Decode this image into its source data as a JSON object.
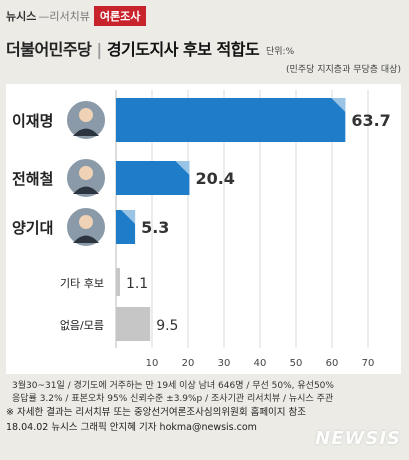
{
  "header": {
    "brand_name": "뉴시스",
    "brand_sub": "리서치뷰",
    "tag": "여론조사",
    "title_part1": "더불어민주당",
    "title_part2": "경기도지사 후보 적합도",
    "unit": "단위:%",
    "subtitle": "(민주당 지지층과 무당층 대상)"
  },
  "chart_data": {
    "type": "bar",
    "orientation": "horizontal",
    "categories": [
      "이재명",
      "전해철",
      "양기대",
      "기타 후보",
      "없음/모름"
    ],
    "values": [
      63.7,
      20.4,
      5.3,
      1.1,
      9.5
    ],
    "value_labels": [
      "63.7",
      "20.4",
      "5.3",
      "1.1",
      "9.5"
    ],
    "xlim": [
      0,
      75
    ],
    "xticks": [
      "10",
      "20",
      "30",
      "40",
      "50",
      "60",
      "70"
    ],
    "tick_values": [
      10,
      20,
      30,
      40,
      50,
      60,
      70
    ],
    "grid": true,
    "colors": {
      "candidate": "#1f7cc8",
      "other": "#c6c6c6",
      "panel": "#ffffff",
      "grid": "#d9d9d9",
      "photo_bg": "#8a9aa8"
    },
    "photo_icons": [
      "candidate-photo",
      "candidate-photo",
      "candidate-photo"
    ]
  },
  "notes": [
    "3월30~31일 / 경기도에 거주하는 만 19세 이상 남녀 646명 / 무선 50%, 유선50%",
    "응답률 3.2% / 표본오차 95% 신뢰수준 ±3.9%p / 조사기관 리서치뷰 / 뉴시스 주관"
  ],
  "footer": {
    "line1": "※ 자세한 결과는 리서치뷰 또는 중앙선거여론조사심의위원회 홈페이지 참조",
    "line2": "18.04.02 뉴시스 그래픽 안지혜 기자 hokma@newsis.com",
    "watermark": "NEWSIS"
  }
}
